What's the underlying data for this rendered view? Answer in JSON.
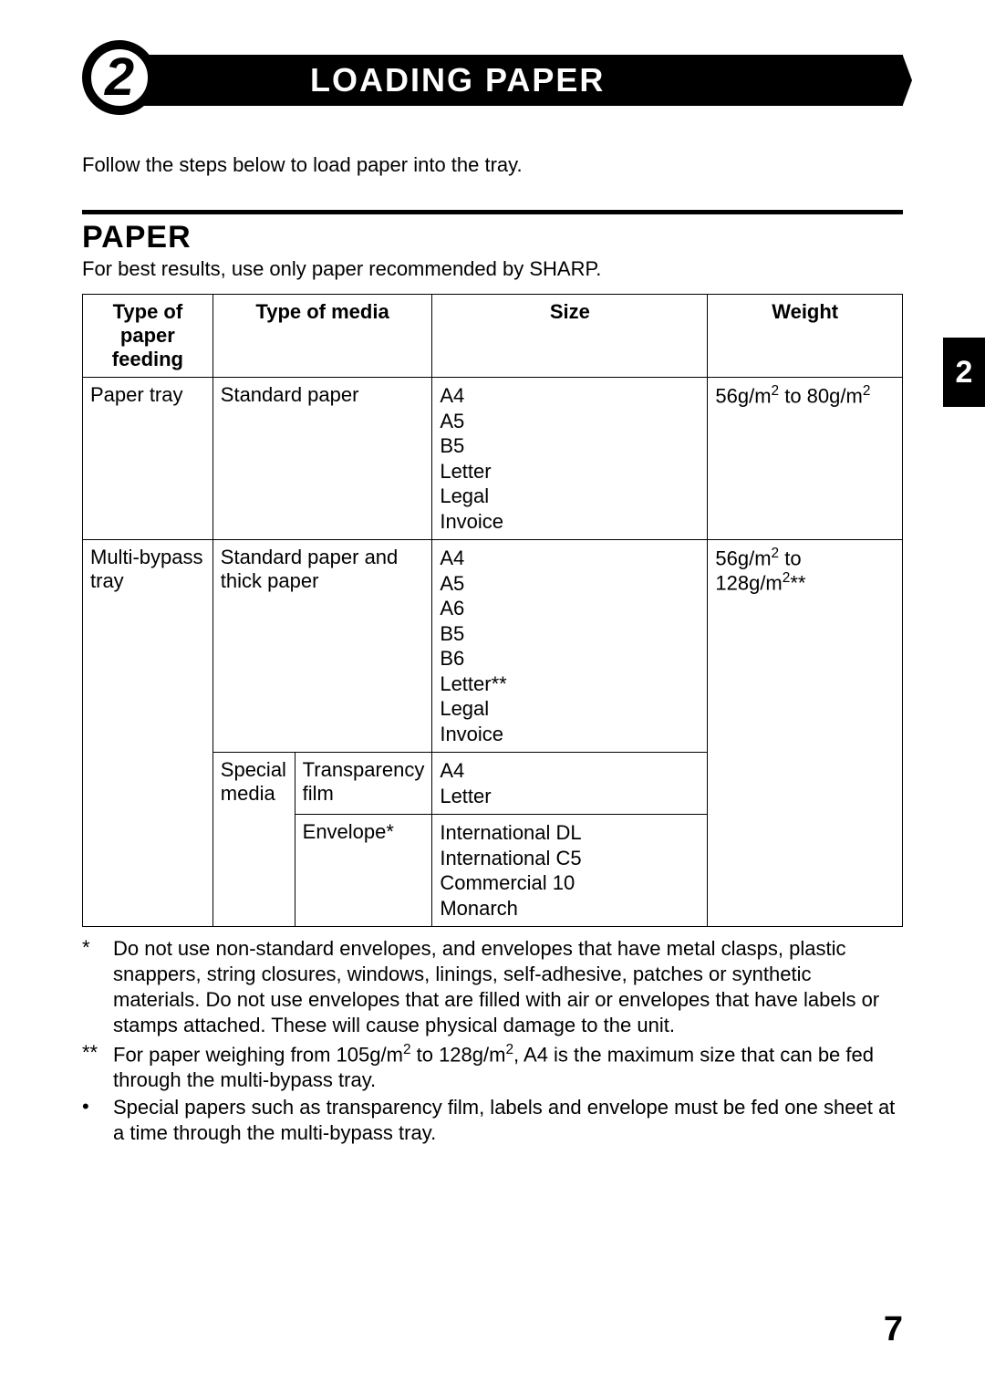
{
  "chapter": {
    "number": "2",
    "title": "LOADING PAPER",
    "intro": "Follow the steps below to load paper into the tray."
  },
  "sideTab": "2",
  "section": {
    "title": "PAPER",
    "intro": "For best results, use only paper recommended by SHARP."
  },
  "table": {
    "headers": {
      "feeding": "Type of paper feeding",
      "media": "Type of media",
      "size": "Size",
      "weight": "Weight"
    },
    "rows": {
      "r1": {
        "feeding": "Paper tray",
        "media": "Standard paper",
        "size": "A4\nA5\nB5\nLetter\nLegal\nInvoice",
        "weight_html": "56g/m<sup>2</sup> to 80g/m<sup>2</sup>"
      },
      "r2": {
        "feeding": "Multi-bypass tray",
        "media": "Standard paper and thick paper",
        "size": "A4\nA5\nA6\nB5\nB6\nLetter**\nLegal\nInvoice",
        "weight_html": "56g/m<sup>2</sup> to 128g/m<sup>2</sup>**"
      },
      "r3": {
        "mediaGroup": "Special media",
        "mediaSub": "Transparency film",
        "size": "A4\nLetter"
      },
      "r4": {
        "mediaSub": "Envelope*",
        "size": "International DL\nInternational C5\nCommercial 10\nMonarch"
      }
    }
  },
  "notes": {
    "n1": {
      "marker": "*",
      "text": "Do not use non-standard envelopes, and envelopes that have metal clasps, plastic snappers, string closures, windows, linings, self-adhesive, patches or synthetic materials. Do not use envelopes that are filled with air or envelopes that have labels or stamps attached. These will cause physical damage to the unit."
    },
    "n2": {
      "marker": "**",
      "text_html": "For paper weighing from 105g/m<sup>2</sup> to 128g/m<sup>2</sup>, A4 is the maximum size that can be fed through the multi-bypass tray."
    },
    "n3": {
      "marker": "•",
      "text": "Special papers such as transparency film, labels and envelope must be fed one sheet at a time through the multi-bypass tray."
    }
  },
  "pageNumber": "7",
  "colors": {
    "text": "#000000",
    "background": "#ffffff",
    "headerBar": "#000000",
    "headerText": "#ffffff"
  }
}
